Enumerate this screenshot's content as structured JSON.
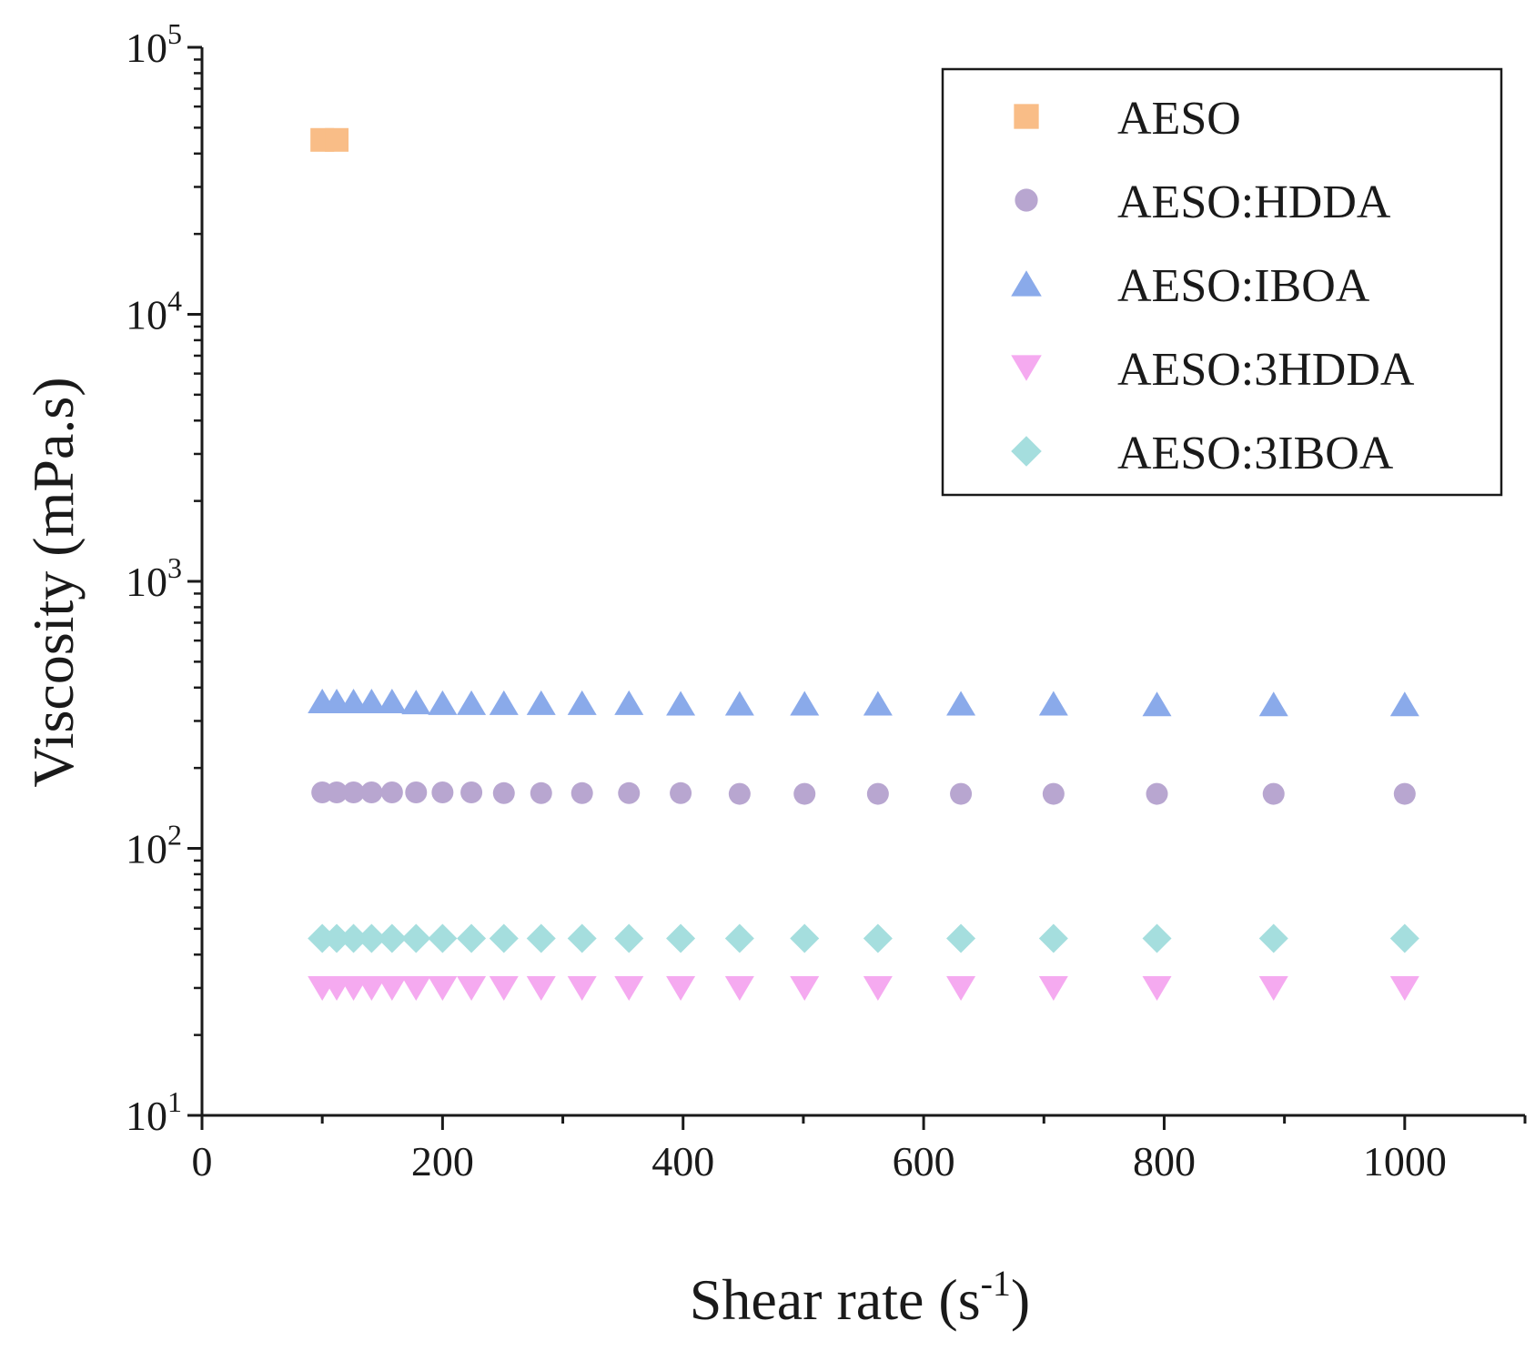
{
  "chart_data": {
    "type": "scatter",
    "title": "",
    "xlabel_main": "Shear rate (s",
    "xlabel_sup": "-1",
    "xlabel_tail": ")",
    "ylabel": "Viscosity (mPa.s)",
    "xlim": [
      0,
      1100
    ],
    "ylim": [
      10,
      100000
    ],
    "yscale": "log",
    "x_ticks": [
      0,
      200,
      400,
      600,
      800,
      1000
    ],
    "x_tick_labels": [
      "0",
      "200",
      "400",
      "600",
      "800",
      "1000"
    ],
    "y_ticks": [
      10,
      100,
      1000,
      10000,
      100000
    ],
    "y_tick_bases": [
      "10",
      "10",
      "10",
      "10",
      "10"
    ],
    "y_tick_exps": [
      "1",
      "2",
      "3",
      "4",
      "5"
    ],
    "legend_position": "top-right",
    "x": [
      100,
      112,
      126,
      141,
      158,
      178,
      200,
      224,
      251,
      282,
      316,
      355,
      398,
      447,
      501,
      562,
      631,
      708,
      794,
      891,
      1000
    ],
    "series": [
      {
        "name": "AESO",
        "marker": "square",
        "color": "#f9bd87",
        "points": [
          [
            100,
            45000
          ],
          [
            112,
            45000
          ]
        ]
      },
      {
        "name": "AESO:HDDA",
        "marker": "circle",
        "color": "#b8a6d0",
        "values": [
          162,
          162,
          162,
          162,
          162,
          162,
          162,
          162,
          161,
          161,
          161,
          161,
          161,
          160,
          160,
          160,
          160,
          160,
          160,
          160,
          160
        ]
      },
      {
        "name": "AESO:IBOA",
        "marker": "triangle-up",
        "color": "#8aaaea",
        "values": [
          355,
          355,
          355,
          355,
          355,
          352,
          350,
          350,
          350,
          350,
          350,
          350,
          348,
          348,
          348,
          348,
          348,
          348,
          346,
          346,
          346
        ]
      },
      {
        "name": "AESO:3HDDA",
        "marker": "triangle-down",
        "color": "#f5aaf0",
        "values": [
          30,
          30,
          30,
          30,
          30,
          30,
          30,
          30,
          30,
          30,
          30,
          30,
          30,
          30,
          30,
          30,
          30,
          30,
          30,
          30,
          30
        ]
      },
      {
        "name": "AESO:3IBOA",
        "marker": "diamond",
        "color": "#a5dede",
        "values": [
          46,
          46,
          46,
          46,
          46,
          46,
          46,
          46,
          46,
          46,
          46,
          46,
          46,
          46,
          46,
          46,
          46,
          46,
          46,
          46,
          46
        ]
      }
    ]
  }
}
